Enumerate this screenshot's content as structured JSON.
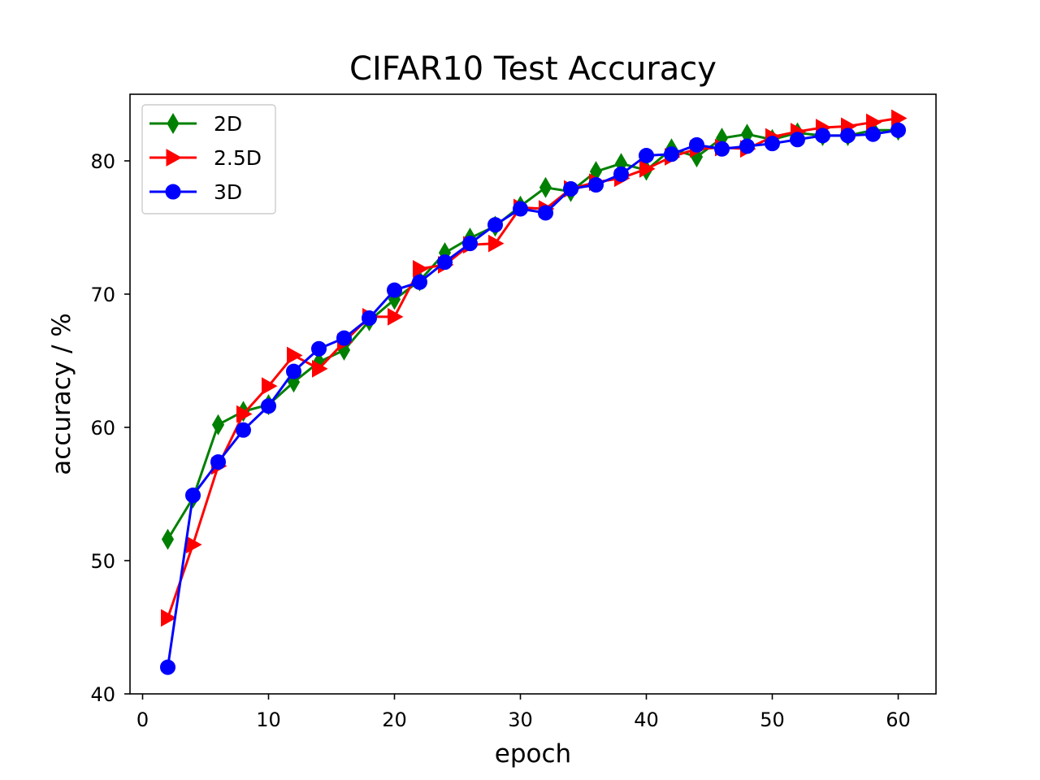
{
  "chart_data": {
    "type": "line",
    "title": "CIFAR10 Test Accuracy",
    "xlabel": "epoch",
    "ylabel": "accuracy / %",
    "xlim": [
      -1,
      63
    ],
    "ylim": [
      40,
      85
    ],
    "xticks": [
      0,
      10,
      20,
      30,
      40,
      50,
      60
    ],
    "yticks": [
      40,
      50,
      60,
      70,
      80
    ],
    "grid": false,
    "legend_position": "top-left",
    "x": [
      2,
      4,
      6,
      8,
      10,
      12,
      14,
      16,
      18,
      20,
      22,
      24,
      26,
      28,
      30,
      32,
      34,
      36,
      38,
      40,
      42,
      44,
      46,
      48,
      50,
      52,
      54,
      56,
      58,
      60
    ],
    "series": [
      {
        "name": "2D",
        "color": "#008000",
        "marker": "thin-diamond",
        "values": [
          51.6,
          54.7,
          60.2,
          61.2,
          61.7,
          63.4,
          64.9,
          65.8,
          68.0,
          69.6,
          71.0,
          73.1,
          74.2,
          75.1,
          76.6,
          78.0,
          77.7,
          79.2,
          79.8,
          79.3,
          80.9,
          80.3,
          81.7,
          82.0,
          81.6,
          82.1,
          81.9,
          81.9,
          82.3,
          82.3
        ]
      },
      {
        "name": "2.5D",
        "color": "#ff0000",
        "marker": "triangle-right",
        "values": [
          45.7,
          51.2,
          57.1,
          61.0,
          63.1,
          65.4,
          64.4,
          66.4,
          68.3,
          68.3,
          71.9,
          72.2,
          73.7,
          73.8,
          76.5,
          76.4,
          77.9,
          78.4,
          78.7,
          79.4,
          80.3,
          80.9,
          81.0,
          80.9,
          81.8,
          82.2,
          82.5,
          82.6,
          82.9,
          83.2
        ]
      },
      {
        "name": "3D",
        "color": "#0000ff",
        "marker": "circle",
        "values": [
          42.0,
          54.9,
          57.4,
          59.8,
          61.6,
          64.2,
          65.9,
          66.7,
          68.2,
          70.3,
          70.9,
          72.4,
          73.8,
          75.2,
          76.4,
          76.1,
          77.9,
          78.2,
          79.0,
          80.4,
          80.5,
          81.2,
          80.9,
          81.1,
          81.3,
          81.6,
          81.9,
          81.9,
          82.0,
          82.3
        ]
      }
    ]
  }
}
